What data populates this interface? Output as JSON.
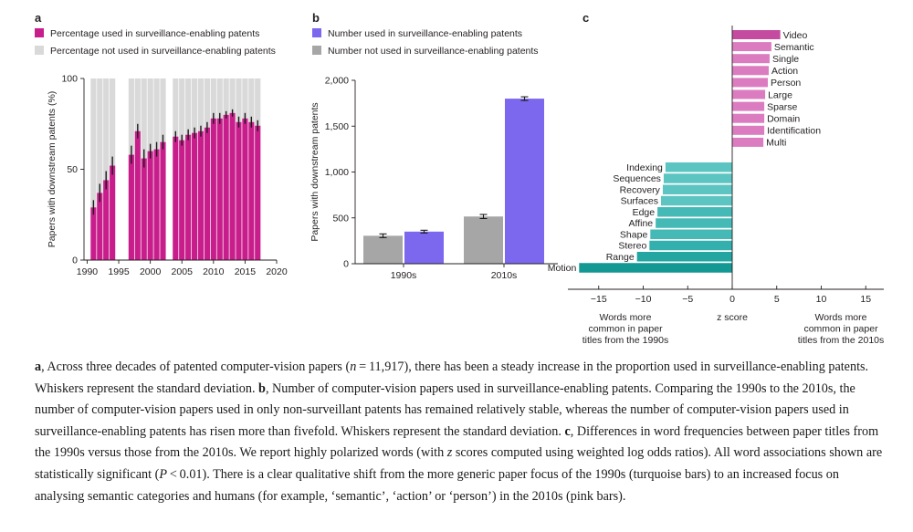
{
  "panels": {
    "a": {
      "label": "a",
      "legend": [
        {
          "text": "Percentage used in surveillance-enabling patents",
          "color": "#c81e8c"
        },
        {
          "text": "Percentage not used in surveillance-enabling patents",
          "color": "#d9d9d9"
        }
      ]
    },
    "b": {
      "label": "b",
      "legend": [
        {
          "text": "Number used in surveillance-enabling patents",
          "color": "#7b68ee"
        },
        {
          "text": "Number not used in surveillance-enabling patents",
          "color": "#a6a6a6"
        }
      ]
    },
    "c": {
      "label": "c"
    }
  },
  "chart_data": [
    {
      "panel": "a",
      "type": "bar",
      "stacked": true,
      "ylabel": "Papers with downstream patents (%)",
      "ylim": [
        0,
        100
      ],
      "yticks": [
        0,
        50,
        100
      ],
      "xlim": [
        1989.5,
        2020
      ],
      "xticks": [
        1990,
        1995,
        2000,
        2005,
        2010,
        2015,
        2020
      ],
      "x": [
        1991,
        1992,
        1993,
        1994,
        1995,
        1997,
        1998,
        1999,
        2000,
        2001,
        2002,
        2004,
        2005,
        2006,
        2007,
        2008,
        2009,
        2010,
        2011,
        2012,
        2013,
        2014,
        2015,
        2016,
        2017
      ],
      "series": [
        {
          "name": "Percentage used in surveillance-enabling patents",
          "values": [
            29,
            37,
            44,
            52,
            0,
            58,
            71,
            56,
            60,
            61,
            65,
            68,
            66,
            69,
            70,
            71,
            73,
            78,
            78,
            80,
            81,
            76,
            78,
            76,
            74
          ],
          "errors": [
            4,
            5,
            5,
            5,
            0,
            5,
            4,
            5,
            4,
            4,
            4,
            3,
            3,
            3,
            3,
            3,
            3,
            3,
            3,
            2,
            2,
            3,
            3,
            3,
            3
          ]
        },
        {
          "name": "Percentage not used in surveillance-enabling patents",
          "values": [
            71,
            63,
            56,
            48,
            0,
            42,
            29,
            44,
            40,
            39,
            35,
            32,
            34,
            31,
            30,
            29,
            27,
            22,
            22,
            20,
            19,
            24,
            22,
            24,
            26
          ]
        }
      ]
    },
    {
      "panel": "b",
      "type": "bar",
      "ylabel": "Papers with downstream patents",
      "ylim": [
        0,
        2000
      ],
      "yticks": [
        0,
        500,
        1000,
        1500,
        2000
      ],
      "ytick_labels": [
        "0",
        "500",
        "1,000",
        "1,500",
        "2,000"
      ],
      "categories": [
        "1990s",
        "2010s"
      ],
      "series": [
        {
          "name": "Number not used in surveillance-enabling patents",
          "values": [
            305,
            515
          ],
          "errors": [
            20,
            22
          ]
        },
        {
          "name": "Number used in surveillance-enabling patents",
          "values": [
            350,
            1800
          ],
          "errors": [
            15,
            20
          ]
        }
      ]
    },
    {
      "panel": "c",
      "type": "bar",
      "orientation": "horizontal",
      "xlabel": "z score",
      "xlim": [
        -17,
        17
      ],
      "xticks": [
        -15,
        -10,
        -5,
        0,
        5,
        10,
        15
      ],
      "xtick_labels": [
        "−15",
        "−10",
        "−5",
        "0",
        "5",
        "10",
        "15"
      ],
      "left_annotation": [
        "Words more",
        "common in paper",
        "titles from the 1990s"
      ],
      "right_annotation": [
        "Words more",
        "common in paper",
        "titles from the 2010s"
      ],
      "categories": [
        "Video",
        "Semantic",
        "Single",
        "Action",
        "Person",
        "Large",
        "Sparse",
        "Domain",
        "Identification",
        "Multi",
        "Indexing",
        "Sequences",
        "Recovery",
        "Surfaces",
        "Edge",
        "Affine",
        "Shape",
        "Stereo",
        "Range",
        "Motion"
      ],
      "values": [
        5.4,
        4.4,
        4.2,
        4.1,
        4.0,
        3.7,
        3.6,
        3.6,
        3.6,
        3.5,
        -7.5,
        -7.7,
        -7.8,
        -8.0,
        -8.4,
        -8.6,
        -9.2,
        -9.3,
        -10.7,
        -17.2
      ],
      "colors": [
        "#c54ba0",
        "#dc7cc0",
        "#dc7cc0",
        "#dc7cc0",
        "#dc7cc0",
        "#dc7cc0",
        "#dc7cc0",
        "#dc7cc0",
        "#dc7cc0",
        "#dc7cc0",
        "#5cc5c2",
        "#5cc5c2",
        "#5cc5c2",
        "#5cc5c2",
        "#44b9b6",
        "#44b9b6",
        "#44b9b6",
        "#33b0ad",
        "#23a5a2",
        "#149894"
      ]
    }
  ],
  "caption": {
    "a_label": "a",
    "a_text_1": ", Across three decades of patented computer-vision papers (",
    "n_var": "n",
    "a_text_2": " = 11,917), there has been a steady increase in the proportion used in surveillance-enabling patents. Whiskers represent the standard deviation. ",
    "b_label": "b",
    "b_text": ", Number of computer-vision papers used in surveillance-enabling patents. Comparing the 1990s to the 2010s, the number of computer-vision papers used in only non-surveillant patents has remained relatively stable, whereas the number of computer-vision papers used in surveillance-enabling patents has risen more than fivefold. Whiskers represent the standard deviation. ",
    "c_label": "c",
    "c_text_1": ", Differences in word frequencies between paper titles from the 1990s versus those from the 2010s. We report highly polarized words (with ",
    "z_var": "z",
    "c_text_2": " scores computed using weighted log odds ratios). All word associations shown are statistically significant (",
    "p_var": "P",
    "c_text_3": " < 0.01). There is a clear qualitative shift from the more generic paper focus of the 1990s (turquoise bars) to an increased focus on analysing semantic categories and humans (for example, ‘semantic’, ‘action’ or ‘person’) in the 2010s (pink bars)."
  }
}
